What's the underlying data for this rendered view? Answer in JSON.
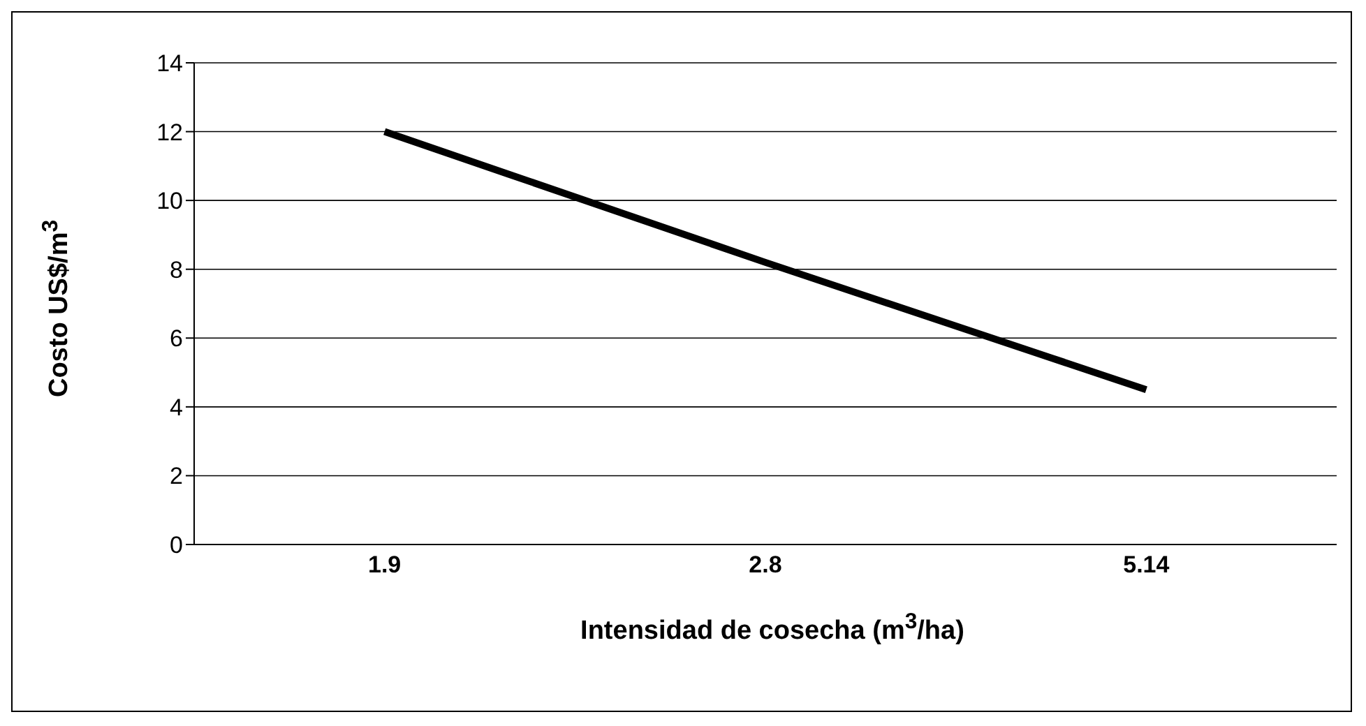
{
  "chart_data": {
    "type": "line",
    "xlabel": "Intensidad de cosecha (m$^{3}$/ha)",
    "ylabel": "Costo US$/m$^{3}$",
    "categories": [
      "1.9",
      "2.8",
      "5.14"
    ],
    "series": [
      {
        "color": "#000000",
        "values": [
          12,
          8.2,
          4.5
        ]
      }
    ],
    "ylim": [
      0,
      14
    ],
    "yticks": [
      0,
      2,
      4,
      6,
      8,
      10,
      12,
      14
    ],
    "grid": "y",
    "legend": false,
    "marker": "none",
    "line_style": "solid"
  }
}
